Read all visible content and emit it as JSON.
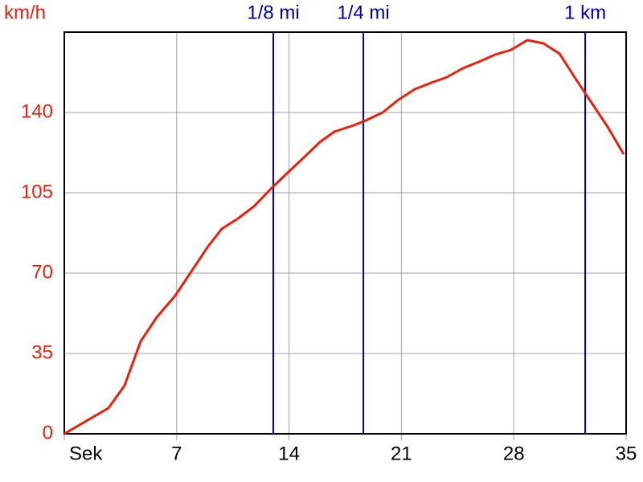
{
  "chart_data": {
    "type": "line",
    "ylabel": "km/h",
    "x": [
      0,
      2.75,
      3.75,
      4.76,
      5.76,
      6.91,
      7.91,
      8.91,
      9.81,
      10.82,
      11.82,
      12.92,
      13.92,
      14.82,
      15.92,
      16.82,
      18.03,
      18.78,
      19.83,
      20.83,
      21.83,
      22.84,
      23.84,
      24.84,
      25.84,
      26.84,
      27.84,
      28.84,
      29.85,
      30.85,
      31.85,
      32.85,
      33.85,
      34.85
    ],
    "values": [
      0,
      11.2,
      21,
      40.3,
      50.8,
      60.2,
      70.7,
      81.2,
      89.3,
      93.8,
      99.1,
      107.1,
      113.8,
      119.7,
      127.1,
      131.6,
      134.4,
      136.5,
      140,
      145.6,
      150.1,
      152.9,
      155.4,
      159.3,
      162.1,
      165.2,
      167.3,
      171.5,
      170.1,
      165.6,
      154.7,
      144.2,
      133.7,
      121.8
    ],
    "color": "#e8200c",
    "xlim": [
      0,
      35
    ],
    "xticks": [
      {
        "value": 0,
        "label": "Sek"
      },
      7,
      14,
      21,
      28,
      35
    ],
    "ylim": [
      0,
      175
    ],
    "yticks": [
      0,
      35,
      70,
      105,
      140
    ],
    "grid": true,
    "markers": [
      {
        "value": 13.02,
        "label": "1/8 mi"
      },
      {
        "value": 18.63,
        "label": "1/4 mi"
      },
      {
        "value": 32.45,
        "label": "1 km"
      }
    ],
    "marker_color": "#0000b0"
  }
}
